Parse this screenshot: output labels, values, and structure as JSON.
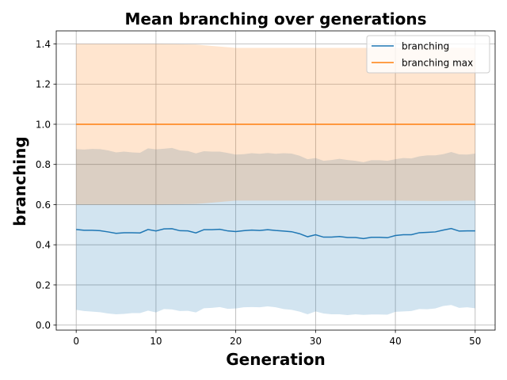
{
  "chart_data": {
    "type": "line",
    "title": "Mean branching over generations",
    "xlabel": "Generation",
    "ylabel": "branching",
    "xlim": [
      -2.5,
      52.5
    ],
    "ylim": [
      -0.025,
      1.465
    ],
    "x_ticks": [
      0,
      10,
      20,
      30,
      40,
      50
    ],
    "y_ticks": [
      0.0,
      0.2,
      0.4,
      0.6,
      0.8,
      1.0,
      1.2,
      1.4
    ],
    "y_tick_labels": [
      "0.0",
      "0.2",
      "0.4",
      "0.6",
      "0.8",
      "1.0",
      "1.2",
      "1.4"
    ],
    "grid": true,
    "legend_position": "top-right",
    "series": [
      {
        "name": "branching",
        "color": "#1f77b4",
        "x": [
          0,
          1,
          2,
          3,
          4,
          5,
          6,
          7,
          8,
          9,
          10,
          11,
          12,
          13,
          14,
          15,
          16,
          17,
          18,
          19,
          20,
          21,
          22,
          23,
          24,
          25,
          26,
          27,
          28,
          29,
          30,
          31,
          32,
          33,
          34,
          35,
          36,
          37,
          38,
          39,
          40,
          41,
          42,
          43,
          44,
          45,
          46,
          47,
          48,
          49,
          50
        ],
        "y": [
          0.476,
          0.472,
          0.472,
          0.47,
          0.464,
          0.457,
          0.46,
          0.46,
          0.459,
          0.476,
          0.469,
          0.479,
          0.48,
          0.47,
          0.469,
          0.459,
          0.475,
          0.475,
          0.477,
          0.469,
          0.466,
          0.47,
          0.473,
          0.471,
          0.475,
          0.471,
          0.468,
          0.465,
          0.455,
          0.44,
          0.45,
          0.438,
          0.438,
          0.441,
          0.436,
          0.436,
          0.431,
          0.437,
          0.437,
          0.435,
          0.446,
          0.45,
          0.45,
          0.46,
          0.462,
          0.464,
          0.473,
          0.481,
          0.468,
          0.469,
          0.469
        ],
        "band_upper": [
          0.876,
          0.874,
          0.877,
          0.876,
          0.87,
          0.86,
          0.864,
          0.86,
          0.858,
          0.88,
          0.875,
          0.878,
          0.882,
          0.87,
          0.867,
          0.855,
          0.866,
          0.864,
          0.864,
          0.857,
          0.849,
          0.851,
          0.856,
          0.853,
          0.857,
          0.853,
          0.856,
          0.854,
          0.843,
          0.826,
          0.832,
          0.818,
          0.822,
          0.828,
          0.822,
          0.818,
          0.811,
          0.821,
          0.821,
          0.818,
          0.826,
          0.832,
          0.83,
          0.84,
          0.845,
          0.845,
          0.851,
          0.862,
          0.85,
          0.849,
          0.854
        ],
        "band_lower": [
          0.076,
          0.07,
          0.067,
          0.064,
          0.058,
          0.054,
          0.056,
          0.06,
          0.06,
          0.072,
          0.063,
          0.08,
          0.078,
          0.07,
          0.071,
          0.063,
          0.084,
          0.086,
          0.09,
          0.081,
          0.083,
          0.089,
          0.09,
          0.089,
          0.093,
          0.089,
          0.08,
          0.076,
          0.067,
          0.054,
          0.068,
          0.058,
          0.054,
          0.054,
          0.05,
          0.054,
          0.051,
          0.053,
          0.053,
          0.052,
          0.066,
          0.068,
          0.07,
          0.08,
          0.079,
          0.083,
          0.095,
          0.1,
          0.086,
          0.089,
          0.084
        ]
      },
      {
        "name": "branching max",
        "color": "#ff7f0e",
        "x": [
          0,
          50
        ],
        "y": [
          1.0,
          1.0
        ],
        "band_x": [
          0,
          5,
          10,
          15,
          20,
          25,
          30,
          35,
          40,
          45,
          50
        ],
        "band_upper": [
          1.4,
          1.4,
          1.4,
          1.397,
          1.38,
          1.38,
          1.38,
          1.38,
          1.38,
          1.382,
          1.38
        ],
        "band_lower": [
          0.6,
          0.6,
          0.6,
          0.603,
          0.62,
          0.62,
          0.62,
          0.62,
          0.62,
          0.618,
          0.62
        ]
      }
    ]
  }
}
